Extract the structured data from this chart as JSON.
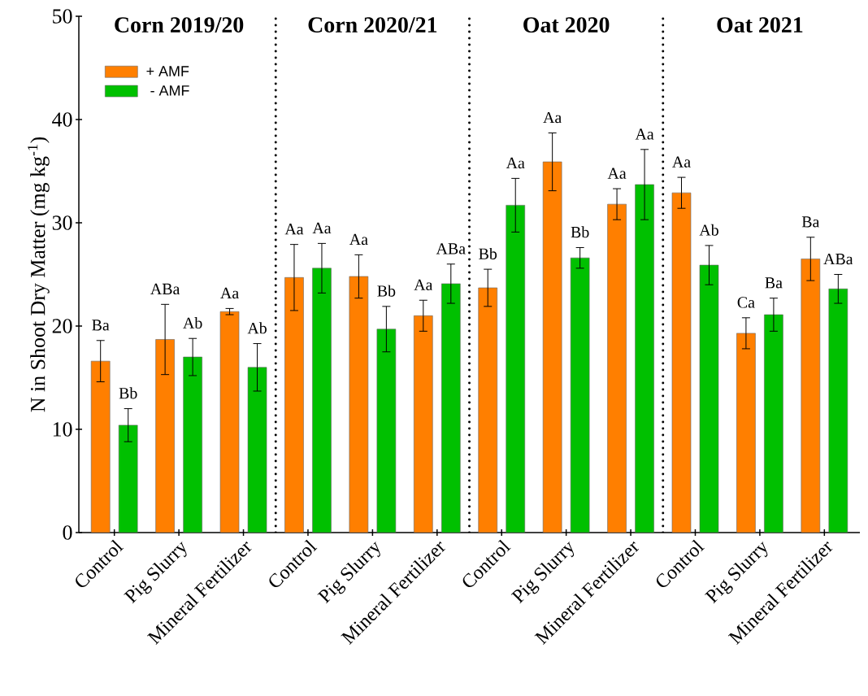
{
  "chart_data": {
    "type": "bar",
    "ylabel": "N in Shoot Dry Matter (mg kg$^{-1}$)",
    "categories": [
      "Control",
      "Pig Slurry",
      "Mineral Fertilizer",
      "Control",
      "Pig Slurry",
      "Mineral Fertilizer",
      "Control",
      "Pig Slurry",
      "Mineral Fertilizer",
      "Control",
      "Pig Slurry",
      "Mineral Fertilizer"
    ],
    "series": [
      {
        "name": "+ AMF",
        "color": "#ff7f00",
        "values": [
          16.6,
          18.7,
          21.4,
          24.7,
          24.8,
          21.0,
          23.7,
          35.9,
          31.8,
          32.9,
          19.3,
          26.5
        ],
        "errors": [
          2.0,
          3.4,
          0.3,
          3.2,
          2.1,
          1.5,
          1.8,
          2.8,
          1.5,
          1.5,
          1.5,
          2.1
        ],
        "value_labels": [
          "Ba",
          "ABa",
          "Aa",
          "Aa",
          "Aa",
          "Aa",
          "Bb",
          "Aa",
          "Aa",
          "Aa",
          "Ca",
          "Ba"
        ]
      },
      {
        "name": " - AMF",
        "color": "#00c000",
        "values": [
          10.4,
          17.0,
          16.0,
          25.6,
          19.7,
          24.1,
          31.7,
          26.6,
          33.7,
          25.9,
          21.1,
          23.6
        ],
        "errors": [
          1.6,
          1.8,
          2.3,
          2.4,
          2.2,
          1.9,
          2.6,
          1.0,
          3.4,
          1.9,
          1.6,
          1.4
        ],
        "value_labels": [
          "Bb",
          "Ab",
          "Ab",
          "Aa",
          "Bb",
          "ABa",
          "Aa",
          "Bb",
          "Aa",
          "Ab",
          "Ba",
          "ABa"
        ]
      }
    ],
    "annotations": [
      "Corn 2019/20",
      "Corn 2020/21",
      "Oat 2020",
      "Oat 2021"
    ],
    "ylim": [
      0,
      50
    ],
    "yticks": [
      0,
      10,
      20,
      30,
      40,
      50
    ],
    "grid": false,
    "legend": "top left"
  }
}
